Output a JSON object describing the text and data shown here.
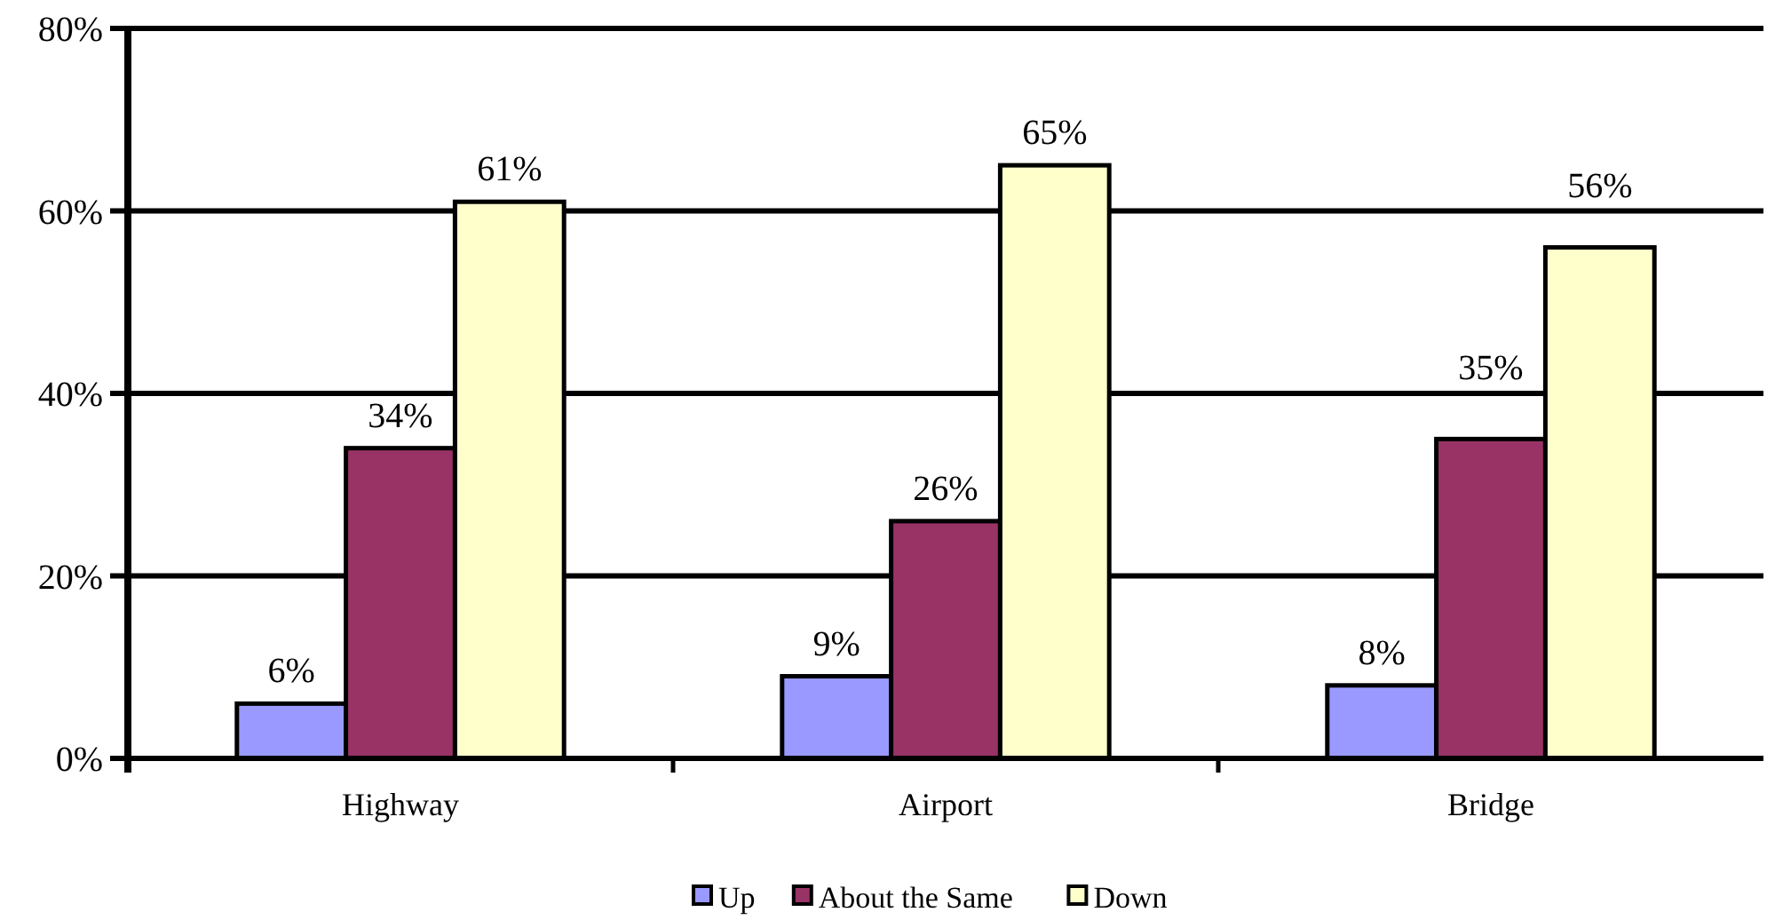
{
  "chart_data": {
    "type": "bar",
    "categories": [
      "Highway",
      "Airport",
      "Bridge"
    ],
    "series": [
      {
        "name": "Up",
        "color": "#9999ff",
        "values": [
          6,
          9,
          8
        ],
        "value_labels": [
          "6%",
          "9%",
          "8%"
        ]
      },
      {
        "name": "About the Same",
        "color": "#993366",
        "values": [
          34,
          26,
          35
        ],
        "value_labels": [
          "34%",
          "26%",
          "35%"
        ]
      },
      {
        "name": "Down",
        "color": "#ffffcc",
        "values": [
          61,
          65,
          56
        ],
        "value_labels": [
          "61%",
          "65%",
          "56%"
        ]
      }
    ],
    "ylim": [
      0,
      80
    ],
    "yticks": [
      {
        "value": 0,
        "label": "0%"
      },
      {
        "value": 20,
        "label": "20%"
      },
      {
        "value": 40,
        "label": "40%"
      },
      {
        "value": 60,
        "label": "60%"
      },
      {
        "value": 80,
        "label": "80%"
      }
    ],
    "grid": "y",
    "legend": "bottom"
  }
}
